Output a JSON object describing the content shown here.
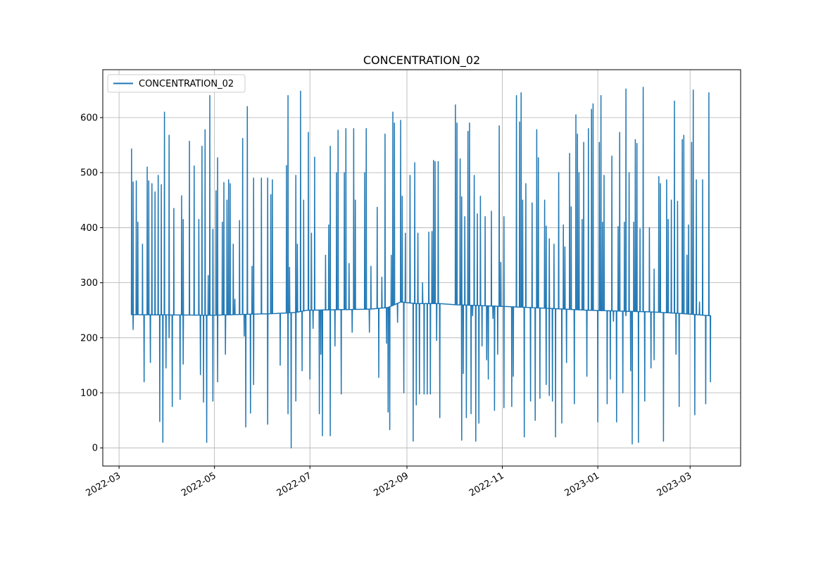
{
  "chart_data": {
    "type": "line",
    "title": "CONCENTRATION_02",
    "xlabel": "",
    "ylabel": "",
    "x_origin": "2022-03-01",
    "x_unit": "days since 2022-03-01",
    "xlim_days": [
      -10.4,
      397.3
    ],
    "ylim": [
      -33,
      687
    ],
    "grid": true,
    "legend": {
      "placement": "top-left",
      "entries": [
        "CONCENTRATION_02"
      ]
    },
    "series_color": "#1f77b4",
    "x_ticks": [
      {
        "day": 0,
        "label": "2022-03"
      },
      {
        "day": 61,
        "label": "2022-05"
      },
      {
        "day": 122,
        "label": "2022-07"
      },
      {
        "day": 184,
        "label": "2022-09"
      },
      {
        "day": 245,
        "label": "2022-11"
      },
      {
        "day": 306,
        "label": "2023-01"
      },
      {
        "day": 365,
        "label": "2023-03"
      }
    ],
    "y_ticks": [
      0,
      100,
      200,
      300,
      400,
      500,
      600
    ],
    "series": [
      {
        "name": "CONCENTRATION_02",
        "baseline": [
          [
            8,
            242
          ],
          [
            60,
            241
          ],
          [
            100,
            244
          ],
          [
            113,
            246
          ],
          [
            120,
            250
          ],
          [
            160,
            252
          ],
          [
            172,
            255
          ],
          [
            180,
            265
          ],
          [
            190,
            262
          ],
          [
            205,
            262
          ],
          [
            215,
            260
          ],
          [
            245,
            257
          ],
          [
            270,
            254
          ],
          [
            300,
            250
          ],
          [
            340,
            247
          ],
          [
            360,
            244
          ],
          [
            378,
            240
          ]
        ],
        "spikes": [
          [
            8,
            543
          ],
          [
            9,
            215
          ],
          [
            9,
            483
          ],
          [
            11,
            485
          ],
          [
            12,
            410
          ],
          [
            15,
            370
          ],
          [
            16,
            120
          ],
          [
            18,
            415
          ],
          [
            18,
            510
          ],
          [
            19,
            485
          ],
          [
            20,
            155
          ],
          [
            21,
            480
          ],
          [
            23,
            465
          ],
          [
            25,
            495
          ],
          [
            26,
            48
          ],
          [
            27,
            478
          ],
          [
            28,
            10
          ],
          [
            29,
            610
          ],
          [
            30,
            145
          ],
          [
            32,
            568
          ],
          [
            32,
            200
          ],
          [
            34,
            75
          ],
          [
            35,
            435
          ],
          [
            39,
            88
          ],
          [
            40,
            458
          ],
          [
            41,
            152
          ],
          [
            41,
            415
          ],
          [
            45,
            557
          ],
          [
            48,
            512
          ],
          [
            51,
            415
          ],
          [
            52,
            133
          ],
          [
            53,
            548
          ],
          [
            54,
            83
          ],
          [
            55,
            578
          ],
          [
            56,
            10
          ],
          [
            57,
            313
          ],
          [
            58,
            640
          ],
          [
            60,
            85
          ],
          [
            60,
            397
          ],
          [
            62,
            467
          ],
          [
            63,
            527
          ],
          [
            63,
            120
          ],
          [
            66,
            410
          ],
          [
            67,
            482
          ],
          [
            68,
            170
          ],
          [
            69,
            450
          ],
          [
            70,
            487
          ],
          [
            71,
            480
          ],
          [
            73,
            370
          ],
          [
            74,
            270
          ],
          [
            77,
            413
          ],
          [
            79,
            562
          ],
          [
            80,
            203
          ],
          [
            81,
            38
          ],
          [
            82,
            620
          ],
          [
            84,
            63
          ],
          [
            85,
            330
          ],
          [
            86,
            490
          ],
          [
            86,
            115
          ],
          [
            91,
            490
          ],
          [
            95,
            43
          ],
          [
            95,
            490
          ],
          [
            97,
            460
          ],
          [
            98,
            487
          ],
          [
            103,
            150
          ],
          [
            107,
            513
          ],
          [
            108,
            62
          ],
          [
            108,
            640
          ],
          [
            109,
            328
          ],
          [
            110,
            0
          ],
          [
            110,
            130
          ],
          [
            113,
            495
          ],
          [
            113,
            85
          ],
          [
            114,
            370
          ],
          [
            116,
            648
          ],
          [
            117,
            140
          ],
          [
            118,
            450
          ],
          [
            121,
            573
          ],
          [
            122,
            125
          ],
          [
            123,
            390
          ],
          [
            124,
            217
          ],
          [
            125,
            528
          ],
          [
            128,
            62
          ],
          [
            129,
            170
          ],
          [
            130,
            22
          ],
          [
            132,
            350
          ],
          [
            134,
            405
          ],
          [
            135,
            548
          ],
          [
            135,
            22
          ],
          [
            138,
            185
          ],
          [
            139,
            500
          ],
          [
            140,
            577
          ],
          [
            142,
            98
          ],
          [
            144,
            500
          ],
          [
            145,
            580
          ],
          [
            147,
            335
          ],
          [
            149,
            210
          ],
          [
            150,
            580
          ],
          [
            151,
            450
          ],
          [
            157,
            500
          ],
          [
            158,
            508
          ],
          [
            158,
            580
          ],
          [
            160,
            210
          ],
          [
            161,
            330
          ],
          [
            165,
            437
          ],
          [
            166,
            128
          ],
          [
            168,
            310
          ],
          [
            170,
            570
          ],
          [
            171,
            190
          ],
          [
            172,
            65
          ],
          [
            173,
            33
          ],
          [
            174,
            350
          ],
          [
            175,
            610
          ],
          [
            176,
            590
          ],
          [
            178,
            228
          ],
          [
            180,
            595
          ],
          [
            181,
            457
          ],
          [
            182,
            100
          ],
          [
            183,
            390
          ],
          [
            186,
            495
          ],
          [
            188,
            12
          ],
          [
            189,
            518
          ],
          [
            190,
            78
          ],
          [
            191,
            390
          ],
          [
            192,
            98
          ],
          [
            194,
            300
          ],
          [
            195,
            98
          ],
          [
            197,
            98
          ],
          [
            198,
            392
          ],
          [
            199,
            98
          ],
          [
            200,
            393
          ],
          [
            201,
            522
          ],
          [
            202,
            520
          ],
          [
            203,
            195
          ],
          [
            204,
            520
          ],
          [
            205,
            55
          ],
          [
            215,
            623
          ],
          [
            216,
            590
          ],
          [
            216,
            505
          ],
          [
            218,
            525
          ],
          [
            219,
            14
          ],
          [
            219,
            456
          ],
          [
            220,
            135
          ],
          [
            221,
            420
          ],
          [
            222,
            55
          ],
          [
            223,
            575
          ],
          [
            224,
            590
          ],
          [
            224,
            587
          ],
          [
            225,
            62
          ],
          [
            226,
            240
          ],
          [
            227,
            495
          ],
          [
            228,
            12
          ],
          [
            229,
            425
          ],
          [
            230,
            45
          ],
          [
            231,
            457
          ],
          [
            232,
            185
          ],
          [
            234,
            345
          ],
          [
            234,
            420
          ],
          [
            235,
            160
          ],
          [
            236,
            125
          ],
          [
            238,
            430
          ],
          [
            239,
            235
          ],
          [
            240,
            68
          ],
          [
            242,
            170
          ],
          [
            243,
            585
          ],
          [
            244,
            337
          ],
          [
            246,
            420
          ],
          [
            246,
            73
          ],
          [
            251,
            75
          ],
          [
            252,
            130
          ],
          [
            254,
            640
          ],
          [
            256,
            510
          ],
          [
            256,
            592
          ],
          [
            257,
            645
          ],
          [
            258,
            450
          ],
          [
            259,
            20
          ],
          [
            260,
            480
          ],
          [
            263,
            85
          ],
          [
            264,
            445
          ],
          [
            266,
            50
          ],
          [
            267,
            578
          ],
          [
            268,
            527
          ],
          [
            269,
            90
          ],
          [
            272,
            450
          ],
          [
            273,
            403
          ],
          [
            273,
            115
          ],
          [
            275,
            95
          ],
          [
            275,
            380
          ],
          [
            277,
            85
          ],
          [
            278,
            370
          ],
          [
            279,
            20
          ],
          [
            281,
            500
          ],
          [
            283,
            45
          ],
          [
            284,
            405
          ],
          [
            285,
            365
          ],
          [
            286,
            155
          ],
          [
            288,
            535
          ],
          [
            289,
            438
          ],
          [
            291,
            80
          ],
          [
            292,
            605
          ],
          [
            293,
            570
          ],
          [
            294,
            500
          ],
          [
            296,
            415
          ],
          [
            297,
            555
          ],
          [
            299,
            130
          ],
          [
            300,
            580
          ],
          [
            302,
            615
          ],
          [
            303,
            625
          ],
          [
            306,
            47
          ],
          [
            307,
            555
          ],
          [
            308,
            640
          ],
          [
            309,
            410
          ],
          [
            310,
            495
          ],
          [
            312,
            80
          ],
          [
            314,
            125
          ],
          [
            315,
            530
          ],
          [
            316,
            230
          ],
          [
            318,
            47
          ],
          [
            319,
            402
          ],
          [
            320,
            573
          ],
          [
            322,
            100
          ],
          [
            323,
            410
          ],
          [
            324,
            240
          ],
          [
            324,
            652
          ],
          [
            326,
            500
          ],
          [
            327,
            140
          ],
          [
            328,
            7
          ],
          [
            329,
            410
          ],
          [
            330,
            560
          ],
          [
            331,
            553
          ],
          [
            332,
            10
          ],
          [
            333,
            398
          ],
          [
            335,
            655
          ],
          [
            336,
            85
          ],
          [
            339,
            400
          ],
          [
            340,
            145
          ],
          [
            342,
            325
          ],
          [
            342,
            160
          ],
          [
            345,
            493
          ],
          [
            346,
            480
          ],
          [
            348,
            12
          ],
          [
            350,
            487
          ],
          [
            351,
            415
          ],
          [
            353,
            450
          ],
          [
            355,
            630
          ],
          [
            356,
            170
          ],
          [
            357,
            448
          ],
          [
            358,
            75
          ],
          [
            360,
            560
          ],
          [
            361,
            568
          ],
          [
            363,
            350
          ],
          [
            364,
            405
          ],
          [
            366,
            555
          ],
          [
            367,
            650
          ],
          [
            368,
            205
          ],
          [
            368,
            60
          ],
          [
            369,
            487
          ],
          [
            369,
            410
          ],
          [
            371,
            265
          ],
          [
            373,
            487
          ],
          [
            373,
            415
          ],
          [
            375,
            80
          ],
          [
            377,
            645
          ],
          [
            378,
            120
          ]
        ]
      }
    ]
  }
}
